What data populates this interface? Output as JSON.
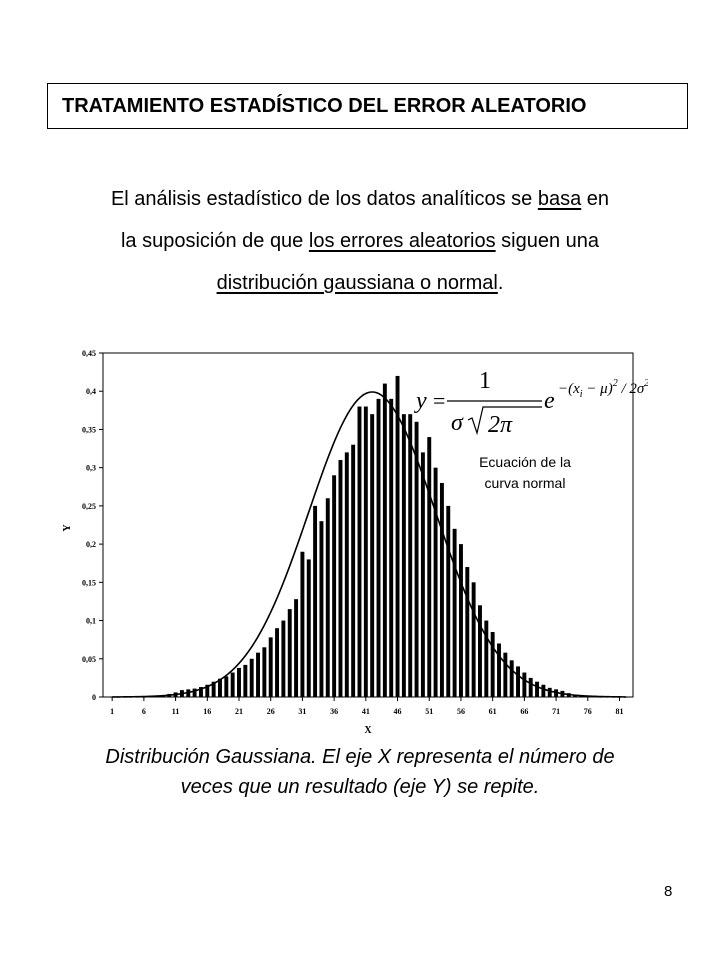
{
  "title": "TRATAMIENTO ESTADÍSTICO DEL ERROR ALEATORIO",
  "paragraph": {
    "line1": {
      "a": "El análisis estadístico de los datos analíticos se ",
      "u": "basa",
      "b": " en"
    },
    "line2": {
      "a": "la suposición de que ",
      "u": "los errores aleatorios",
      "b": " siguen una"
    },
    "line3": {
      "u": "distribución gaussiana o normal",
      "b": "."
    }
  },
  "equation_note": {
    "line1": "Ecuación de la",
    "line2": "curva normal"
  },
  "equation": {
    "y": "y",
    "eq": "=",
    "one": "1",
    "sigma": "σ",
    "two_pi": "2π",
    "e": "e",
    "exponent": "−(x",
    "sub_i": "i",
    "exponent_rest": " − μ)",
    "sq1": "2",
    "exponent_den": " / 2σ",
    "sq2": "2"
  },
  "caption": {
    "line1": "Distribución Gaussiana. El eje X representa el número de",
    "line2": "veces que un resultado (eje Y) se repite."
  },
  "page_number": "8",
  "chart_data": {
    "type": "bar",
    "xlabel": "X",
    "ylabel": "Y",
    "ylim": [
      0,
      0.45
    ],
    "yticks": [
      "0",
      "0,05",
      "0,1",
      "0,15",
      "0,2",
      "0,25",
      "0,3",
      "0,35",
      "0,4",
      "0,45"
    ],
    "xticks": [
      "1",
      "6",
      "11",
      "16",
      "21",
      "26",
      "31",
      "36",
      "41",
      "46",
      "51",
      "56",
      "61",
      "66",
      "71",
      "76",
      "81"
    ],
    "x": [
      1,
      2,
      3,
      4,
      5,
      6,
      7,
      8,
      9,
      10,
      11,
      12,
      13,
      14,
      15,
      16,
      17,
      18,
      19,
      20,
      21,
      22,
      23,
      24,
      25,
      26,
      27,
      28,
      29,
      30,
      31,
      32,
      33,
      34,
      35,
      36,
      37,
      38,
      39,
      40,
      41,
      42,
      43,
      44,
      45,
      46,
      47,
      48,
      49,
      50,
      51,
      52,
      53,
      54,
      55,
      56,
      57,
      58,
      59,
      60,
      61,
      62,
      63,
      64,
      65,
      66,
      67,
      68,
      69,
      70,
      71,
      72,
      73,
      74,
      75,
      76,
      77,
      78,
      79,
      80,
      81,
      82
    ],
    "values": [
      0,
      0,
      0,
      0,
      0,
      0,
      0.001,
      0.002,
      0.002,
      0.004,
      0.006,
      0.009,
      0.01,
      0.011,
      0.013,
      0.016,
      0.02,
      0.024,
      0.027,
      0.032,
      0.038,
      0.042,
      0.05,
      0.058,
      0.065,
      0.078,
      0.09,
      0.1,
      0.115,
      0.128,
      0.19,
      0.18,
      0.25,
      0.23,
      0.26,
      0.29,
      0.31,
      0.32,
      0.33,
      0.38,
      0.38,
      0.37,
      0.39,
      0.41,
      0.39,
      0.42,
      0.37,
      0.37,
      0.36,
      0.32,
      0.34,
      0.3,
      0.28,
      0.25,
      0.22,
      0.2,
      0.17,
      0.15,
      0.12,
      0.1,
      0.085,
      0.07,
      0.058,
      0.048,
      0.04,
      0.032,
      0.025,
      0.02,
      0.016,
      0.012,
      0.01,
      0.008,
      0.005,
      0.003,
      0.002,
      0.001,
      0.001,
      0,
      0,
      0,
      0,
      0
    ],
    "curve": {
      "label": "normal",
      "mean": 42,
      "sigma": 10,
      "peak": 0.399
    }
  }
}
